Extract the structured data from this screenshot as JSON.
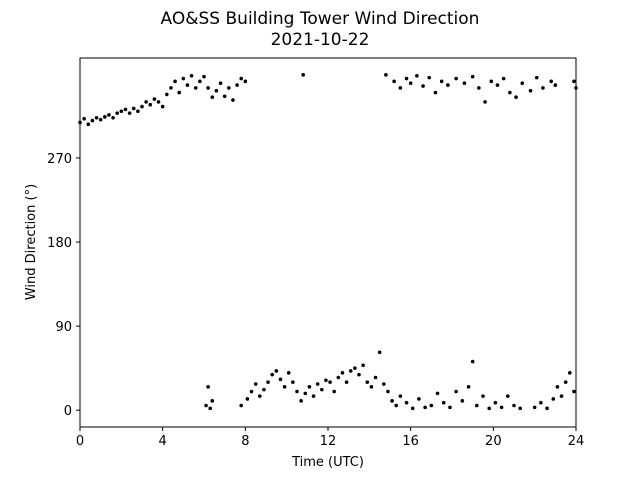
{
  "chart_data": {
    "type": "scatter",
    "title": "AO&SS Building Tower Wind Direction",
    "subtitle": "2021-10-22",
    "xlabel": "Time (UTC)",
    "ylabel": "Wind Direction (°)",
    "color": "#000000",
    "grid": false,
    "xlim": [
      0,
      24
    ],
    "xticks": [
      0,
      4,
      8,
      12,
      16,
      20,
      24
    ],
    "ylim": [
      -18,
      377
    ],
    "yticks": [
      0,
      90,
      180,
      270
    ],
    "x": [
      0,
      0.2,
      0.4,
      0.6,
      0.8,
      1.0,
      1.2,
      1.4,
      1.6,
      1.8,
      2.0,
      2.2,
      2.4,
      2.6,
      2.8,
      3.0,
      3.2,
      3.4,
      3.6,
      3.8,
      4.0,
      4.2,
      4.4,
      4.6,
      4.8,
      5.0,
      5.2,
      5.4,
      5.6,
      5.8,
      6.0,
      6.2,
      6.4,
      6.6,
      6.8,
      7.0,
      7.2,
      7.4,
      7.6,
      7.8,
      8.0,
      10.8,
      14.8,
      15.2,
      15.5,
      15.8,
      16.0,
      16.3,
      16.6,
      16.9,
      17.2,
      17.5,
      17.8,
      18.2,
      18.6,
      19.0,
      19.3,
      19.6,
      19.9,
      20.2,
      20.5,
      20.8,
      21.1,
      21.4,
      21.8,
      22.1,
      22.4,
      22.8,
      23.0,
      23.9,
      24,
      6.1,
      6.2,
      6.3,
      6.4,
      7.8,
      8.1,
      8.3,
      8.5,
      8.7,
      8.9,
      9.1,
      9.3,
      9.5,
      9.7,
      9.9,
      10.1,
      10.3,
      10.5,
      10.7,
      10.9,
      11.1,
      11.3,
      11.5,
      11.7,
      11.9,
      12.1,
      12.3,
      12.5,
      12.7,
      12.9,
      13.1,
      13.3,
      13.5,
      13.7,
      13.9,
      14.1,
      14.3,
      14.5,
      14.7,
      14.9,
      15.1,
      15.3,
      15.5,
      15.8,
      16.1,
      16.4,
      16.7,
      17.0,
      17.3,
      17.6,
      17.9,
      18.2,
      18.5,
      18.8,
      19.0,
      19.2,
      19.5,
      19.8,
      20.1,
      20.4,
      20.7,
      21.0,
      21.3,
      22.0,
      22.3,
      22.6,
      22.9,
      23.1,
      23.3,
      23.5,
      23.7,
      23.9
    ],
    "values": [
      308,
      312,
      306,
      310,
      313,
      311,
      314,
      316,
      313,
      318,
      320,
      322,
      318,
      323,
      320,
      325,
      330,
      327,
      333,
      330,
      325,
      338,
      345,
      352,
      340,
      355,
      348,
      358,
      345,
      352,
      357,
      345,
      335,
      342,
      350,
      336,
      345,
      332,
      348,
      355,
      352,
      359,
      359,
      352,
      345,
      355,
      350,
      358,
      347,
      356,
      340,
      352,
      348,
      355,
      350,
      357,
      345,
      330,
      352,
      348,
      355,
      340,
      335,
      350,
      342,
      356,
      345,
      352,
      348,
      352,
      345,
      5,
      25,
      2,
      10,
      5,
      12,
      20,
      28,
      15,
      22,
      30,
      38,
      42,
      33,
      25,
      40,
      30,
      20,
      10,
      18,
      25,
      15,
      28,
      22,
      32,
      30,
      20,
      35,
      40,
      30,
      42,
      45,
      38,
      48,
      30,
      25,
      35,
      62,
      28,
      20,
      10,
      5,
      15,
      8,
      2,
      12,
      3,
      5,
      18,
      8,
      3,
      20,
      10,
      25,
      52,
      5,
      15,
      2,
      8,
      3,
      15,
      5,
      2,
      3,
      8,
      2,
      12,
      25,
      15,
      30,
      40,
      20
    ]
  }
}
